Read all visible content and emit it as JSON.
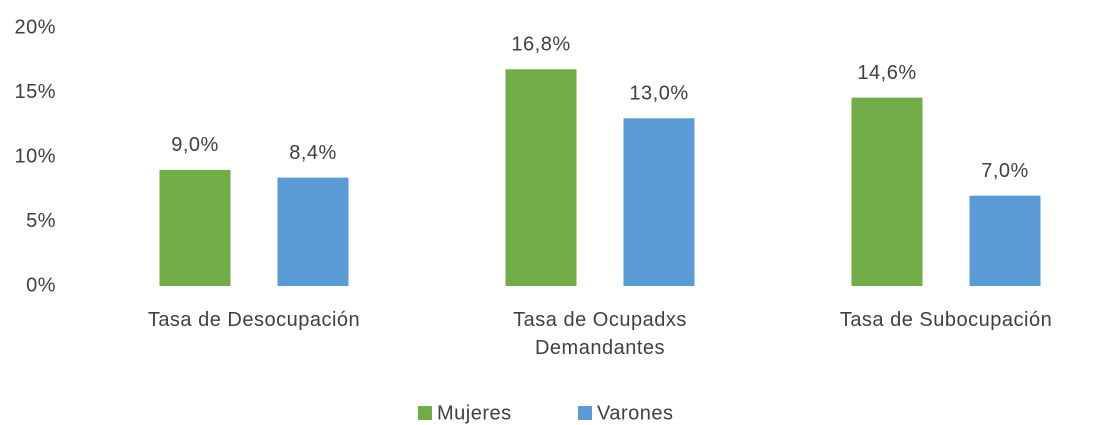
{
  "chart_data": {
    "type": "bar",
    "categories": [
      "Tasa de Desocupación",
      "Tasa de Ocupadxs Demandantes",
      "Tasa de Subocupación"
    ],
    "series": [
      {
        "name": "Mujeres",
        "color": "#70ad47",
        "values": [
          9.0,
          16.8,
          14.6
        ],
        "value_labels": [
          "9,0%",
          "16,8%",
          "14,6%"
        ]
      },
      {
        "name": "Varones",
        "color": "#5b9bd5",
        "values": [
          8.4,
          13.0,
          7.0
        ],
        "value_labels": [
          "8,4%",
          "13,0%",
          "7,0%"
        ]
      }
    ],
    "ylim": [
      0,
      20
    ],
    "yticks": [
      {
        "value": 0,
        "label": "0%"
      },
      {
        "value": 5,
        "label": "5%"
      },
      {
        "value": 10,
        "label": "10%"
      },
      {
        "value": 15,
        "label": "15%"
      },
      {
        "value": 20,
        "label": "20%"
      }
    ],
    "grid": false,
    "legend": "bottom"
  }
}
